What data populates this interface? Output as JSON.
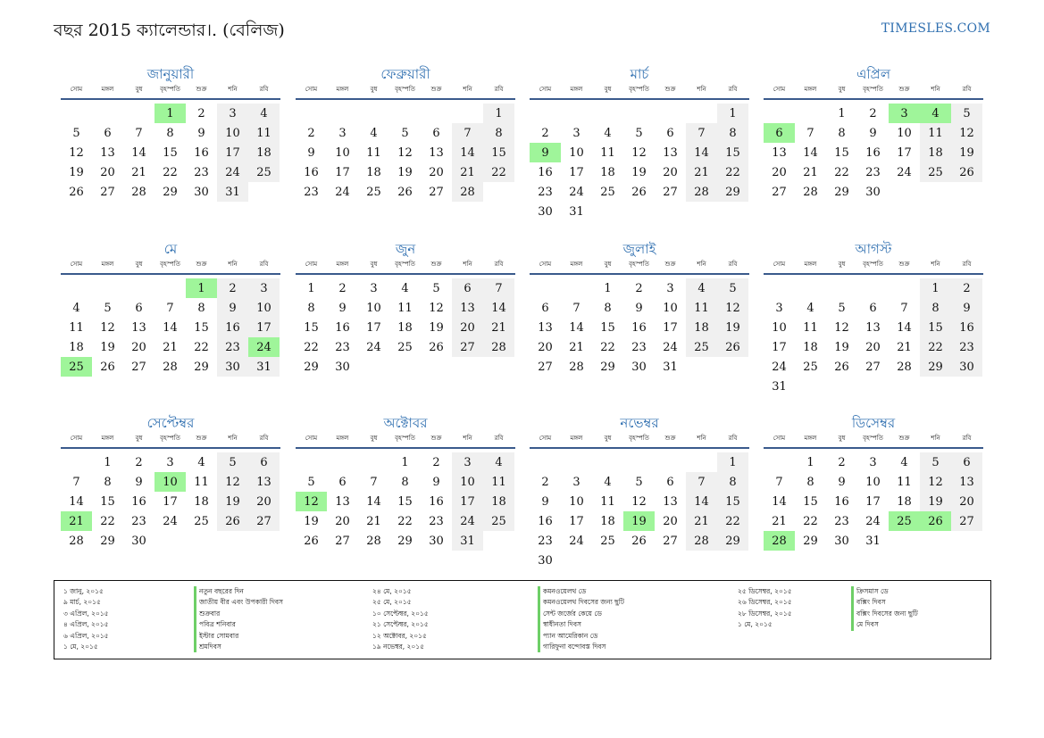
{
  "header": {
    "title": "বছর 2015 ক্যালেন্ডার।. (বেলিজ)",
    "site": "TIMESLES.COM"
  },
  "weekdays": [
    "সোম",
    "মঙ্গল",
    "বুধ",
    "বৃহস্পতি",
    "শুক্র",
    "শনি",
    "রবি"
  ],
  "colors": {
    "accent": "#2f6fb0",
    "holiday": "#9ff59a",
    "weekend": "#f0f0f0"
  },
  "months": [
    {
      "name": "জানুয়ারী",
      "offset": 3,
      "days": 31,
      "holidays": [
        1
      ]
    },
    {
      "name": "ফেব্রুয়ারী",
      "offset": 6,
      "days": 28,
      "holidays": []
    },
    {
      "name": "মার্চ",
      "offset": 6,
      "days": 31,
      "holidays": [
        9
      ]
    },
    {
      "name": "এপ্রিল",
      "offset": 2,
      "days": 30,
      "holidays": [
        3,
        4,
        6
      ]
    },
    {
      "name": "মে",
      "offset": 4,
      "days": 31,
      "holidays": [
        1,
        24,
        25
      ]
    },
    {
      "name": "জুন",
      "offset": 0,
      "days": 30,
      "holidays": []
    },
    {
      "name": "জুলাই",
      "offset": 2,
      "days": 31,
      "holidays": []
    },
    {
      "name": "আগস্ট",
      "offset": 5,
      "days": 31,
      "holidays": []
    },
    {
      "name": "সেপ্টেম্বর",
      "offset": 1,
      "days": 30,
      "holidays": [
        10,
        21
      ]
    },
    {
      "name": "অক্টোবর",
      "offset": 3,
      "days": 31,
      "holidays": [
        12
      ]
    },
    {
      "name": "নভেম্বর",
      "offset": 6,
      "days": 30,
      "holidays": [
        19
      ]
    },
    {
      "name": "ডিসেম্বর",
      "offset": 1,
      "days": 31,
      "holidays": [
        25,
        26,
        28
      ]
    }
  ],
  "legend": {
    "col1_dates": [
      "১ জানু, ২০১৫",
      "৯ মার্চ, ২০১৫",
      "৩ এপ্রিল, ২০১৫",
      "৪ এপ্রিল, ২০১৫",
      "৬ এপ্রিল, ২০১৫",
      "১ মে, ২০১৫"
    ],
    "col1_names": [
      "নতুন বছরের দিন",
      "জাতীয় বীর এবং উপকারী দিবস",
      "শুক্রবার",
      "পবিত্র শনিবার",
      "ইস্টার সোমবার",
      "শ্রমদিবস"
    ],
    "col2_dates": [
      "২৪ মে, ২০১৫",
      "২৫ মে, ২০১৫",
      "১০ সেপ্টেম্বর, ২০১৫",
      "২১ সেপ্টেম্বর, ২০১৫",
      "১২ অক্টোবর, ২০১৫",
      "১৯ নভেম্বর, ২০১৫"
    ],
    "col2_names": [
      "কমনওয়েলথ ডে",
      "কমনওয়েলথ দিবসের জন্য ছুটি",
      "সেন্ট জর্জের কেয়ে ডে",
      "স্বাধীনতা দিবস",
      "প্যান আমেরিকান ডে",
      "গারিফুনা বন্দোবস্ত দিবস"
    ],
    "col3_dates": [
      "২৫ ডিসেম্বর, ২০১৫",
      "২৬ ডিসেম্বর, ২০১৫",
      "২৮ ডিসেম্বর, ২০১৫",
      "১ মে, ২০১৫"
    ],
    "col3_names": [
      "ক্রিসমাস ডে",
      "বক্সিং দিবস",
      "বক্সিং দিবসের জন্য ছুটি",
      "মে দিবস"
    ]
  }
}
